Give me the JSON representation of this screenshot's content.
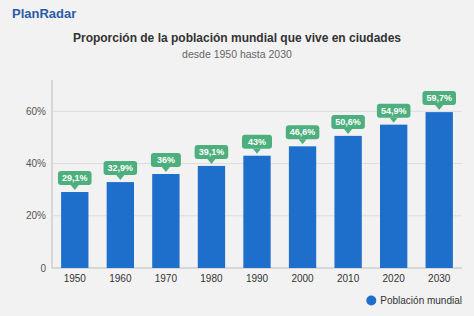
{
  "chart_data": {
    "type": "bar",
    "title": "Proporción de la población mundial que vive en ciudades",
    "subtitle": "desde 1950 hasta 2030",
    "annotations": [
      "PlanRadar"
    ],
    "categories": [
      "1950",
      "1960",
      "1970",
      "1980",
      "1990",
      "2000",
      "2010",
      "2020",
      "2030"
    ],
    "series": [
      {
        "name": "Población mundial",
        "color": "#1E6FCC",
        "values": [
          29.1,
          32.9,
          36.0,
          39.1,
          43.0,
          46.6,
          50.6,
          54.9,
          59.7
        ],
        "value_labels": [
          "29,1%",
          "32,9%",
          "36%",
          "39,1%",
          "43%",
          "46,6%",
          "50,6%",
          "54,9%",
          "59,7%"
        ]
      }
    ],
    "ylim": [
      0,
      72
    ],
    "yticks": [
      0,
      {
        "value": 20,
        "label": "20%"
      },
      {
        "value": 40,
        "label": "40%"
      },
      {
        "value": 60,
        "label": "60%"
      }
    ],
    "grid": true,
    "data_labels": true,
    "legend": "bottom-right"
  }
}
